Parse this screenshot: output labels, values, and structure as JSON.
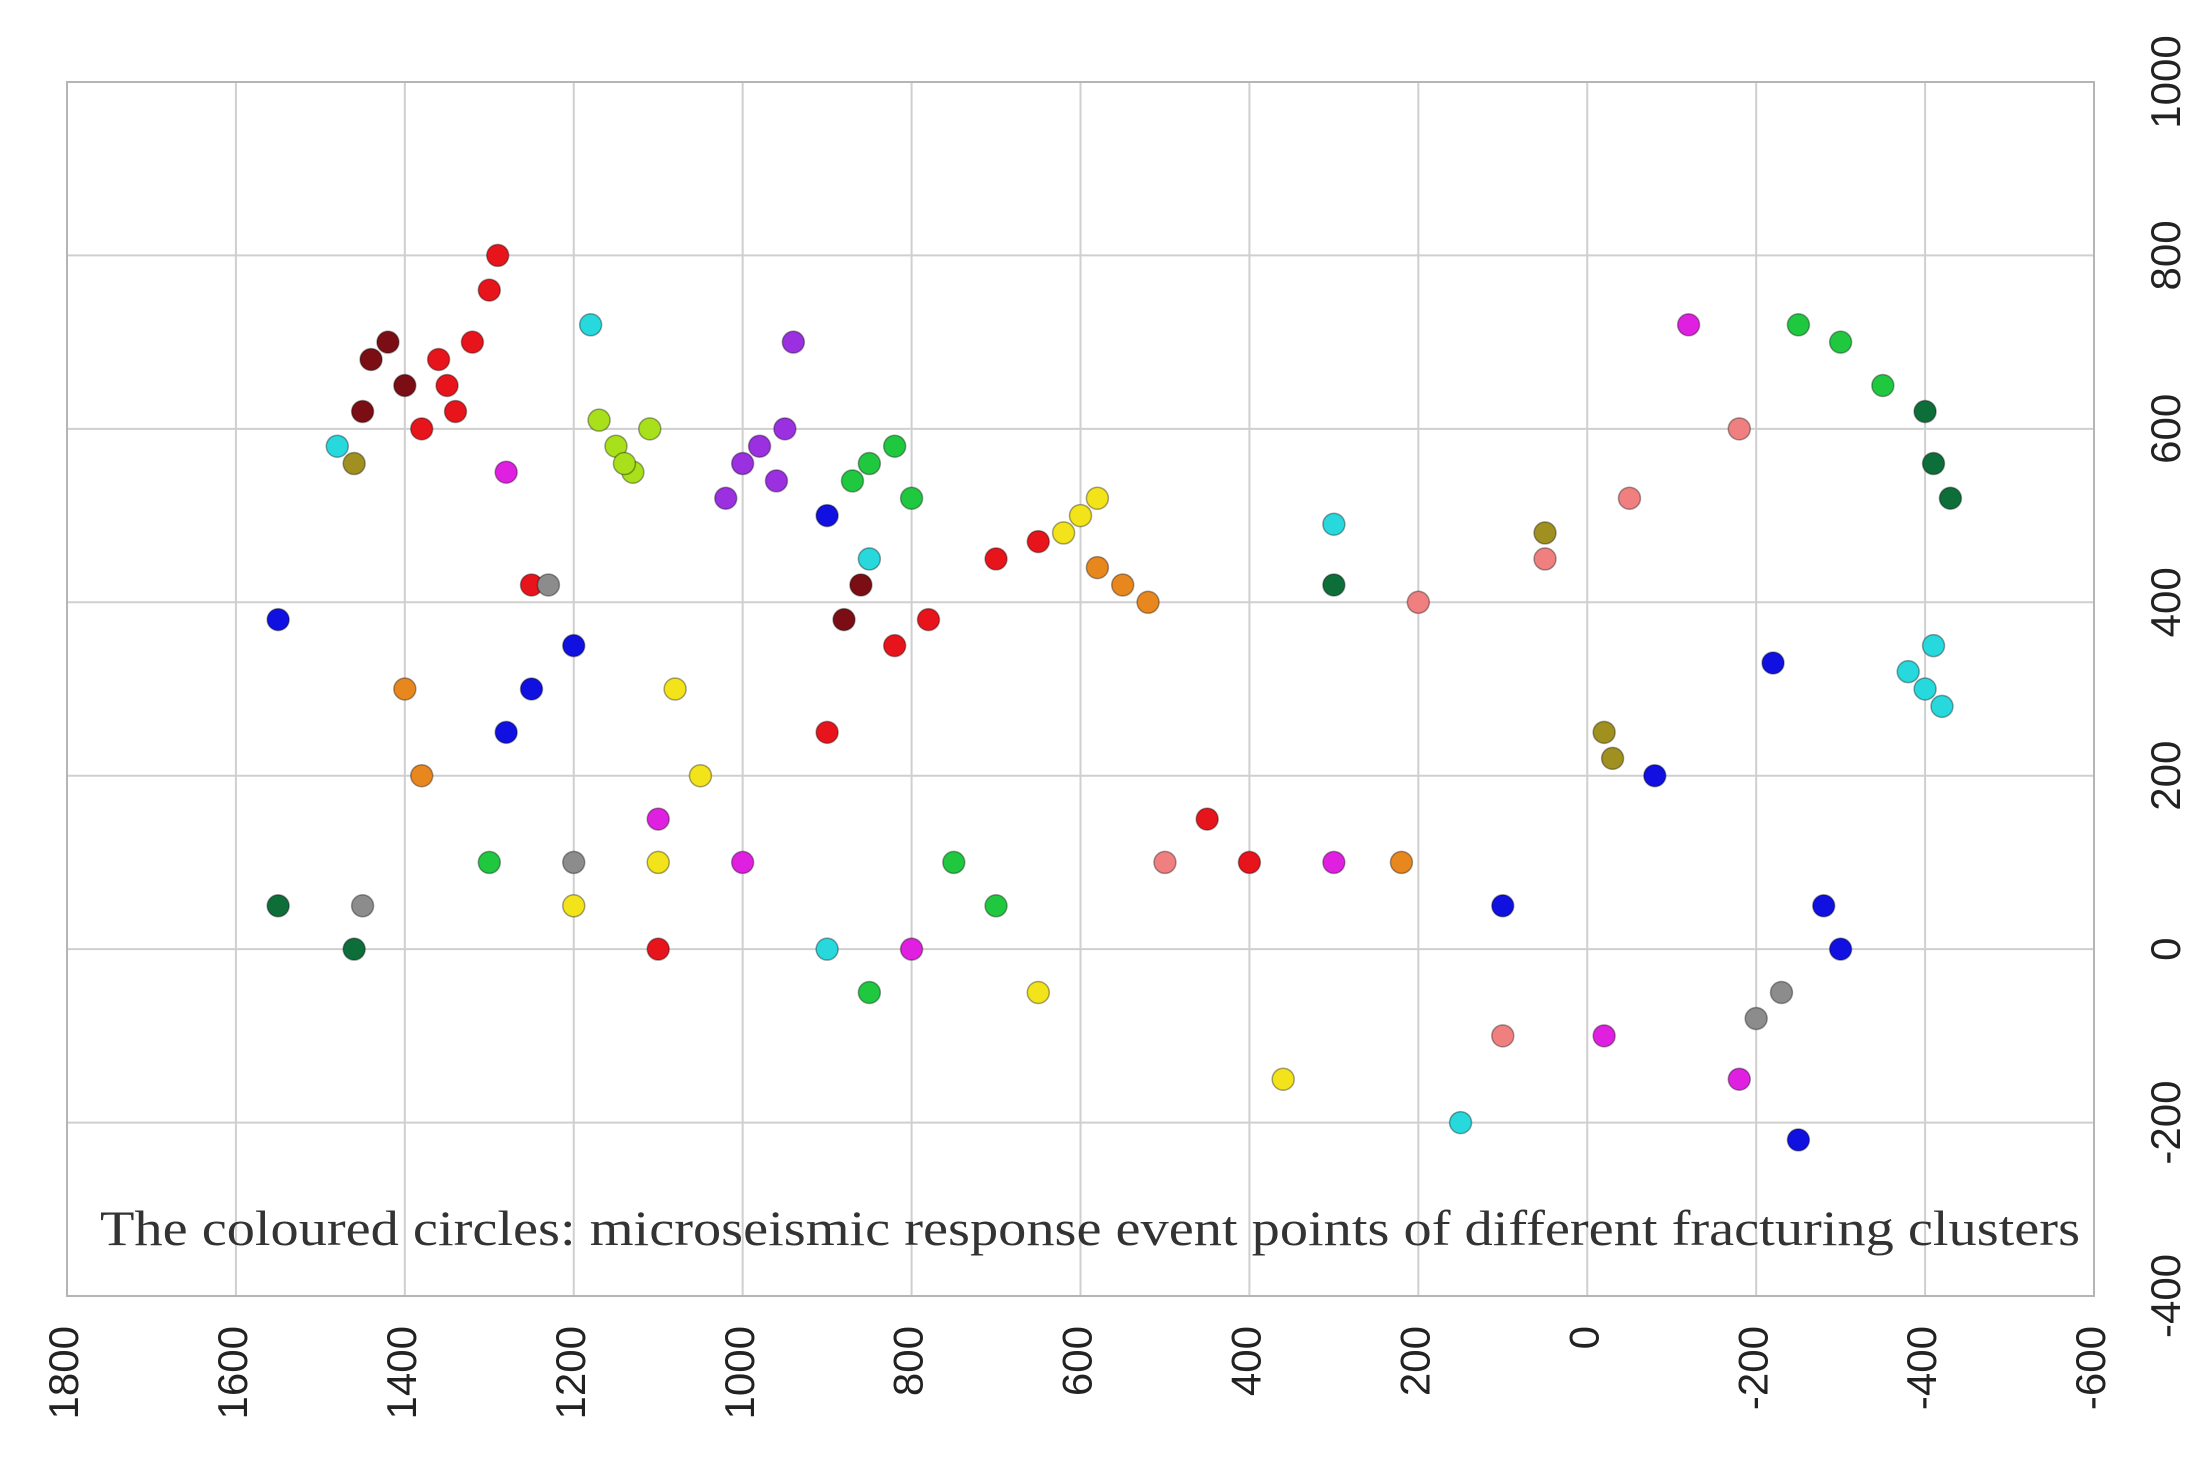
{
  "chart_data": {
    "type": "scatter",
    "annotation": "The coloured circles: microseismic response event points of different fracturing clusters",
    "xlim": [
      1800,
      -600
    ],
    "ylim": [
      -400,
      1000
    ],
    "xticks": [
      1800,
      1600,
      1400,
      1200,
      1000,
      800,
      600,
      400,
      200,
      0,
      -200,
      -400,
      -600
    ],
    "yticks": [
      -400,
      -200,
      0,
      200,
      400,
      600,
      800,
      1000
    ],
    "grid": true,
    "series": [
      {
        "color": "#e8141c",
        "x": [
          1350,
          1320,
          1300,
          1380,
          1340,
          1290,
          1360,
          700,
          650,
          400,
          450,
          1100,
          820,
          900,
          1250,
          780
        ],
        "y": [
          650,
          700,
          760,
          600,
          620,
          800,
          680,
          450,
          470,
          100,
          150,
          0,
          350,
          250,
          420,
          380
        ]
      },
      {
        "color": "#7a0e14",
        "x": [
          1420,
          1400,
          1450,
          1440,
          860,
          880
        ],
        "y": [
          700,
          650,
          620,
          680,
          420,
          380
        ]
      },
      {
        "color": "#a8e01c",
        "x": [
          1150,
          1130,
          1170,
          1140,
          1110
        ],
        "y": [
          580,
          550,
          610,
          560,
          600
        ]
      },
      {
        "color": "#9b30e0",
        "x": [
          1000,
          950,
          1020,
          980,
          960,
          940
        ],
        "y": [
          560,
          600,
          520,
          580,
          540,
          700
        ]
      },
      {
        "color": "#20c840",
        "x": [
          850,
          800,
          870,
          820,
          700,
          850,
          750,
          1300,
          -300,
          -350,
          -250
        ],
        "y": [
          560,
          520,
          540,
          580,
          50,
          -50,
          100,
          100,
          700,
          650,
          720
        ]
      },
      {
        "color": "#f2e31a",
        "x": [
          600,
          580,
          620,
          1050,
          1080,
          1100,
          650,
          1200,
          360
        ],
        "y": [
          500,
          520,
          480,
          200,
          300,
          100,
          -50,
          50,
          -150
        ]
      },
      {
        "color": "#e8871e",
        "x": [
          550,
          520,
          580,
          1400,
          1380,
          220
        ],
        "y": [
          420,
          400,
          440,
          300,
          200,
          100
        ]
      },
      {
        "color": "#27d8dc",
        "x": [
          -400,
          -380,
          -420,
          -410,
          300,
          850,
          900,
          150,
          1480,
          1180
        ],
        "y": [
          300,
          320,
          280,
          350,
          490,
          450,
          0,
          -200,
          580,
          720
        ]
      },
      {
        "color": "#1010e0",
        "x": [
          1250,
          1200,
          1280,
          -280,
          -300,
          -250,
          100,
          -80,
          900,
          1550,
          -220
        ],
        "y": [
          300,
          350,
          250,
          50,
          0,
          -220,
          50,
          200,
          500,
          380,
          330
        ]
      },
      {
        "color": "#e020e0",
        "x": [
          1000,
          800,
          -180,
          1100,
          300,
          -20,
          1280,
          -120
        ],
        "y": [
          100,
          0,
          -150,
          150,
          100,
          -100,
          550,
          720
        ]
      },
      {
        "color": "#8c8c8c",
        "x": [
          -230,
          -200,
          1200,
          1450,
          1230
        ],
        "y": [
          -50,
          -80,
          100,
          50,
          420
        ]
      },
      {
        "color": "#f08080",
        "x": [
          100,
          50,
          -50,
          500,
          200,
          -180
        ],
        "y": [
          -100,
          450,
          520,
          100,
          400,
          600
        ]
      },
      {
        "color": "#a09020",
        "x": [
          -20,
          -30,
          50,
          1460
        ],
        "y": [
          250,
          220,
          480,
          560
        ]
      },
      {
        "color": "#0e6e3a",
        "x": [
          -430,
          -410,
          -400,
          1550,
          1460,
          300
        ],
        "y": [
          520,
          560,
          620,
          50,
          0,
          420
        ]
      }
    ]
  }
}
